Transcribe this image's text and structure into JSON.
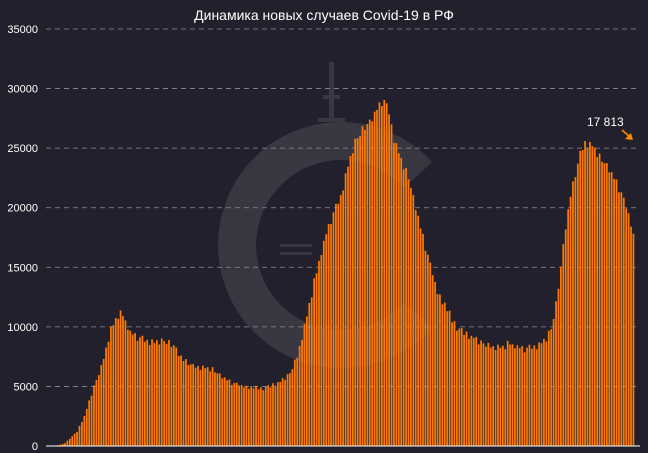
{
  "chart_data": {
    "type": "bar",
    "title": "Динамика новых случаев Covid-19 в РФ",
    "xlabel": "",
    "ylabel": "",
    "ylim": [
      0,
      35000
    ],
    "yticks": [
      "0",
      "5000",
      "10000",
      "15000",
      "20000",
      "25000",
      "30000",
      "35000"
    ],
    "grid": true,
    "bar_color": "#ff7a00",
    "background": "#22202c",
    "profile": [
      [
        0,
        0
      ],
      [
        3,
        100
      ],
      [
        5,
        250
      ],
      [
        10,
        1200
      ],
      [
        13,
        2500
      ],
      [
        17,
        5000
      ],
      [
        20,
        6600
      ],
      [
        24,
        9800
      ],
      [
        27,
        11000
      ],
      [
        29,
        11000
      ],
      [
        32,
        9500
      ],
      [
        35,
        9100
      ],
      [
        38,
        8900
      ],
      [
        42,
        8700
      ],
      [
        46,
        8800
      ],
      [
        50,
        8400
      ],
      [
        54,
        7200
      ],
      [
        58,
        6700
      ],
      [
        62,
        6600
      ],
      [
        66,
        6400
      ],
      [
        70,
        5800
      ],
      [
        74,
        5300
      ],
      [
        78,
        5100
      ],
      [
        82,
        4900
      ],
      [
        86,
        4850
      ],
      [
        90,
        5000
      ],
      [
        94,
        5400
      ],
      [
        98,
        6100
      ],
      [
        101,
        7500
      ],
      [
        104,
        10000
      ],
      [
        107,
        12800
      ],
      [
        110,
        15500
      ],
      [
        113,
        17800
      ],
      [
        116,
        19500
      ],
      [
        119,
        21000
      ],
      [
        122,
        23500
      ],
      [
        125,
        25500
      ],
      [
        128,
        26500
      ],
      [
        131,
        27200
      ],
      [
        134,
        28300
      ],
      [
        137,
        29000
      ],
      [
        139,
        28000
      ],
      [
        141,
        25800
      ],
      [
        144,
        24000
      ],
      [
        147,
        22500
      ],
      [
        150,
        20000
      ],
      [
        153,
        17500
      ],
      [
        156,
        15200
      ],
      [
        159,
        13000
      ],
      [
        162,
        11800
      ],
      [
        165,
        10600
      ],
      [
        168,
        9800
      ],
      [
        171,
        9300
      ],
      [
        174,
        9100
      ],
      [
        177,
        8700
      ],
      [
        180,
        8400
      ],
      [
        183,
        8300
      ],
      [
        186,
        8300
      ],
      [
        189,
        8600
      ],
      [
        192,
        8300
      ],
      [
        195,
        8100
      ],
      [
        198,
        8300
      ],
      [
        201,
        8500
      ],
      [
        204,
        9000
      ],
      [
        206,
        9800
      ],
      [
        208,
        11800
      ],
      [
        210,
        15000
      ],
      [
        212,
        18500
      ],
      [
        214,
        21000
      ],
      [
        216,
        22800
      ],
      [
        218,
        24500
      ],
      [
        220,
        25500
      ],
      [
        223,
        25200
      ],
      [
        226,
        24200
      ],
      [
        229,
        23500
      ],
      [
        232,
        22500
      ],
      [
        235,
        21200
      ],
      [
        238,
        19500
      ],
      [
        240,
        17813
      ]
    ],
    "noise": [
      120,
      -310,
      240,
      -80,
      360,
      -220,
      150,
      -400,
      60,
      280,
      -150,
      330,
      -260,
      90,
      -40,
      210,
      -350,
      180,
      20,
      -190,
      300,
      -120,
      70,
      -280,
      250,
      -60,
      140,
      -330,
      380,
      -100,
      40,
      -240,
      190,
      -20,
      260,
      -300,
      110,
      320,
      -170,
      80,
      -380,
      230,
      -50,
      170,
      -260,
      290,
      10,
      -140,
      350,
      -210,
      60,
      200,
      -320,
      130,
      -90,
      310,
      -230,
      50,
      270,
      -160,
      100,
      -360,
      220,
      -30,
      180,
      -290,
      340,
      -110,
      0,
      240,
      -200,
      160,
      -70,
      300,
      -340,
      90,
      200,
      -130,
      30,
      -250
    ],
    "annotation": {
      "label": "17 813",
      "value": 17813
    }
  },
  "arrow_color": "#ff8a00"
}
